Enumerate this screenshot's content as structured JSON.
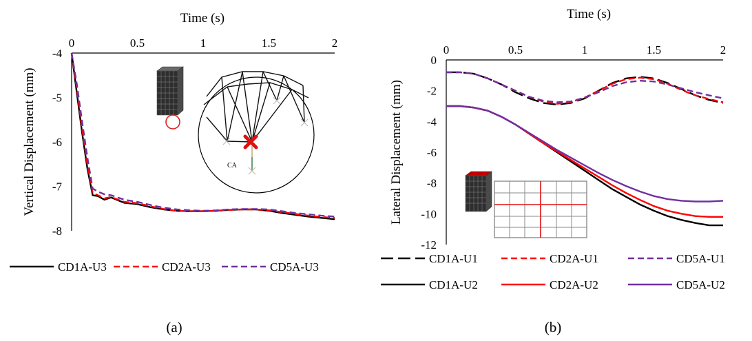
{
  "chart_data": [
    {
      "panel": "a",
      "type": "line",
      "caption": "(a)",
      "xlabel": "Time (s)",
      "ylabel": "Vertical Displacement (mm)",
      "xlim": [
        0,
        2
      ],
      "ylim": [
        -8,
        -4
      ],
      "xticks": [
        0,
        0.5,
        1,
        1.5,
        2
      ],
      "xtick_labels": [
        "0",
        "0.5",
        "1",
        "1.5",
        "2"
      ],
      "yticks": [
        -4,
        -5,
        -6,
        -7,
        -8
      ],
      "ytick_labels": [
        "-4",
        "-5",
        "-6",
        "-7",
        "-8"
      ],
      "xaxis_position": "top",
      "grid": false,
      "legend_position": "bottom",
      "inset_text": "CA",
      "series": [
        {
          "name": "CD1A-U3",
          "color": "#000000",
          "dash": "solid",
          "x": [
            0,
            0.04,
            0.08,
            0.12,
            0.16,
            0.2,
            0.25,
            0.3,
            0.4,
            0.5,
            0.6,
            0.7,
            0.8,
            0.9,
            1.0,
            1.1,
            1.2,
            1.3,
            1.4,
            1.5,
            1.6,
            1.7,
            1.8,
            1.9,
            2.0
          ],
          "y": [
            -4.0,
            -4.9,
            -5.8,
            -6.6,
            -7.2,
            -7.22,
            -7.3,
            -7.25,
            -7.37,
            -7.4,
            -7.47,
            -7.52,
            -7.55,
            -7.56,
            -7.56,
            -7.55,
            -7.53,
            -7.52,
            -7.52,
            -7.55,
            -7.6,
            -7.64,
            -7.68,
            -7.71,
            -7.74
          ]
        },
        {
          "name": "CD2A-U3",
          "color": "#ff0000",
          "dash": "dashed",
          "x": [
            0,
            0.04,
            0.08,
            0.12,
            0.16,
            0.2,
            0.25,
            0.3,
            0.4,
            0.5,
            0.6,
            0.7,
            0.8,
            0.9,
            1.0,
            1.1,
            1.2,
            1.3,
            1.4,
            1.5,
            1.6,
            1.7,
            1.8,
            1.9,
            2.0
          ],
          "y": [
            -4.0,
            -4.8,
            -5.7,
            -6.5,
            -7.15,
            -7.2,
            -7.27,
            -7.24,
            -7.35,
            -7.38,
            -7.45,
            -7.51,
            -7.55,
            -7.56,
            -7.56,
            -7.55,
            -7.53,
            -7.52,
            -7.52,
            -7.54,
            -7.58,
            -7.62,
            -7.66,
            -7.69,
            -7.71
          ]
        },
        {
          "name": "CD5A-U3",
          "color": "#7030a0",
          "dash": "dashed",
          "x": [
            0,
            0.04,
            0.08,
            0.12,
            0.16,
            0.2,
            0.25,
            0.3,
            0.4,
            0.5,
            0.6,
            0.7,
            0.8,
            0.9,
            1.0,
            1.1,
            1.2,
            1.3,
            1.4,
            1.5,
            1.6,
            1.7,
            1.8,
            1.9,
            2.0
          ],
          "y": [
            -4.0,
            -4.7,
            -5.55,
            -6.35,
            -7.05,
            -7.12,
            -7.18,
            -7.2,
            -7.3,
            -7.35,
            -7.42,
            -7.48,
            -7.52,
            -7.54,
            -7.55,
            -7.54,
            -7.52,
            -7.51,
            -7.51,
            -7.52,
            -7.56,
            -7.6,
            -7.63,
            -7.66,
            -7.68
          ]
        }
      ]
    },
    {
      "panel": "b",
      "type": "line",
      "caption": "(b)",
      "xlabel": "Time (s)",
      "ylabel": "Lateral Displacement (mm)",
      "xlim": [
        0,
        2
      ],
      "ylim": [
        -12,
        0
      ],
      "xticks": [
        0,
        0.5,
        1,
        1.5,
        2
      ],
      "xtick_labels": [
        "0",
        "0.5",
        "1",
        "1.5",
        "2"
      ],
      "yticks": [
        0,
        -2,
        -4,
        -6,
        -8,
        -10,
        -12
      ],
      "ytick_labels": [
        "0",
        "-2",
        "-4",
        "-6",
        "-8",
        "-10",
        "-12"
      ],
      "xaxis_position": "top",
      "grid": false,
      "legend_position": "bottom",
      "series": [
        {
          "name": "CD1A-U1",
          "color": "#000000",
          "dash": "longdash",
          "x": [
            0,
            0.1,
            0.2,
            0.3,
            0.4,
            0.5,
            0.6,
            0.7,
            0.8,
            0.9,
            1.0,
            1.1,
            1.2,
            1.3,
            1.4,
            1.5,
            1.6,
            1.7,
            1.8,
            1.9,
            2.0
          ],
          "y": [
            -0.8,
            -0.8,
            -0.9,
            -1.2,
            -1.6,
            -2.1,
            -2.5,
            -2.8,
            -2.9,
            -2.8,
            -2.5,
            -2.0,
            -1.5,
            -1.2,
            -1.1,
            -1.2,
            -1.5,
            -1.9,
            -2.3,
            -2.6,
            -2.8
          ]
        },
        {
          "name": "CD2A-U1",
          "color": "#ff0000",
          "dash": "dashed",
          "x": [
            0,
            0.1,
            0.2,
            0.3,
            0.4,
            0.5,
            0.6,
            0.7,
            0.8,
            0.9,
            1.0,
            1.1,
            1.2,
            1.3,
            1.4,
            1.5,
            1.6,
            1.7,
            1.8,
            1.9,
            2.0
          ],
          "y": [
            -0.8,
            -0.8,
            -0.9,
            -1.2,
            -1.6,
            -2.0,
            -2.4,
            -2.7,
            -2.85,
            -2.75,
            -2.45,
            -2.0,
            -1.55,
            -1.25,
            -1.15,
            -1.25,
            -1.55,
            -1.95,
            -2.3,
            -2.55,
            -2.75
          ]
        },
        {
          "name": "CD5A-U1",
          "color": "#7030a0",
          "dash": "dashed",
          "x": [
            0,
            0.1,
            0.2,
            0.3,
            0.4,
            0.5,
            0.6,
            0.7,
            0.8,
            0.9,
            1.0,
            1.1,
            1.2,
            1.3,
            1.4,
            1.5,
            1.6,
            1.7,
            1.8,
            1.9,
            2.0
          ],
          "y": [
            -0.8,
            -0.8,
            -0.9,
            -1.2,
            -1.6,
            -2.0,
            -2.4,
            -2.65,
            -2.75,
            -2.7,
            -2.45,
            -2.1,
            -1.7,
            -1.45,
            -1.35,
            -1.4,
            -1.6,
            -1.85,
            -2.1,
            -2.3,
            -2.5
          ]
        },
        {
          "name": "CD1A-U2",
          "color": "#000000",
          "dash": "solid",
          "x": [
            0,
            0.1,
            0.2,
            0.3,
            0.4,
            0.5,
            0.6,
            0.7,
            0.8,
            0.9,
            1.0,
            1.1,
            1.2,
            1.3,
            1.4,
            1.5,
            1.6,
            1.7,
            1.8,
            1.9,
            2.0
          ],
          "y": [
            -3.0,
            -3.0,
            -3.1,
            -3.3,
            -3.7,
            -4.2,
            -4.8,
            -5.4,
            -6.0,
            -6.6,
            -7.2,
            -7.8,
            -8.4,
            -8.9,
            -9.4,
            -9.8,
            -10.15,
            -10.4,
            -10.6,
            -10.75,
            -10.75
          ]
        },
        {
          "name": "CD2A-U2",
          "color": "#ff0000",
          "dash": "solid",
          "x": [
            0,
            0.1,
            0.2,
            0.3,
            0.4,
            0.5,
            0.6,
            0.7,
            0.8,
            0.9,
            1.0,
            1.1,
            1.2,
            1.3,
            1.4,
            1.5,
            1.6,
            1.7,
            1.8,
            1.9,
            2.0
          ],
          "y": [
            -3.0,
            -3.0,
            -3.1,
            -3.3,
            -3.7,
            -4.2,
            -4.8,
            -5.4,
            -5.95,
            -6.5,
            -7.05,
            -7.6,
            -8.15,
            -8.65,
            -9.1,
            -9.5,
            -9.8,
            -10.0,
            -10.15,
            -10.2,
            -10.2
          ]
        },
        {
          "name": "CD5A-U2",
          "color": "#7030a0",
          "dash": "solid",
          "x": [
            0,
            0.1,
            0.2,
            0.3,
            0.4,
            0.5,
            0.6,
            0.7,
            0.8,
            0.9,
            1.0,
            1.1,
            1.2,
            1.3,
            1.4,
            1.5,
            1.6,
            1.7,
            1.8,
            1.9,
            2.0
          ],
          "y": [
            -3.0,
            -3.0,
            -3.1,
            -3.3,
            -3.7,
            -4.2,
            -4.75,
            -5.3,
            -5.85,
            -6.35,
            -6.85,
            -7.35,
            -7.8,
            -8.2,
            -8.55,
            -8.85,
            -9.05,
            -9.15,
            -9.2,
            -9.2,
            -9.15
          ]
        }
      ]
    }
  ]
}
